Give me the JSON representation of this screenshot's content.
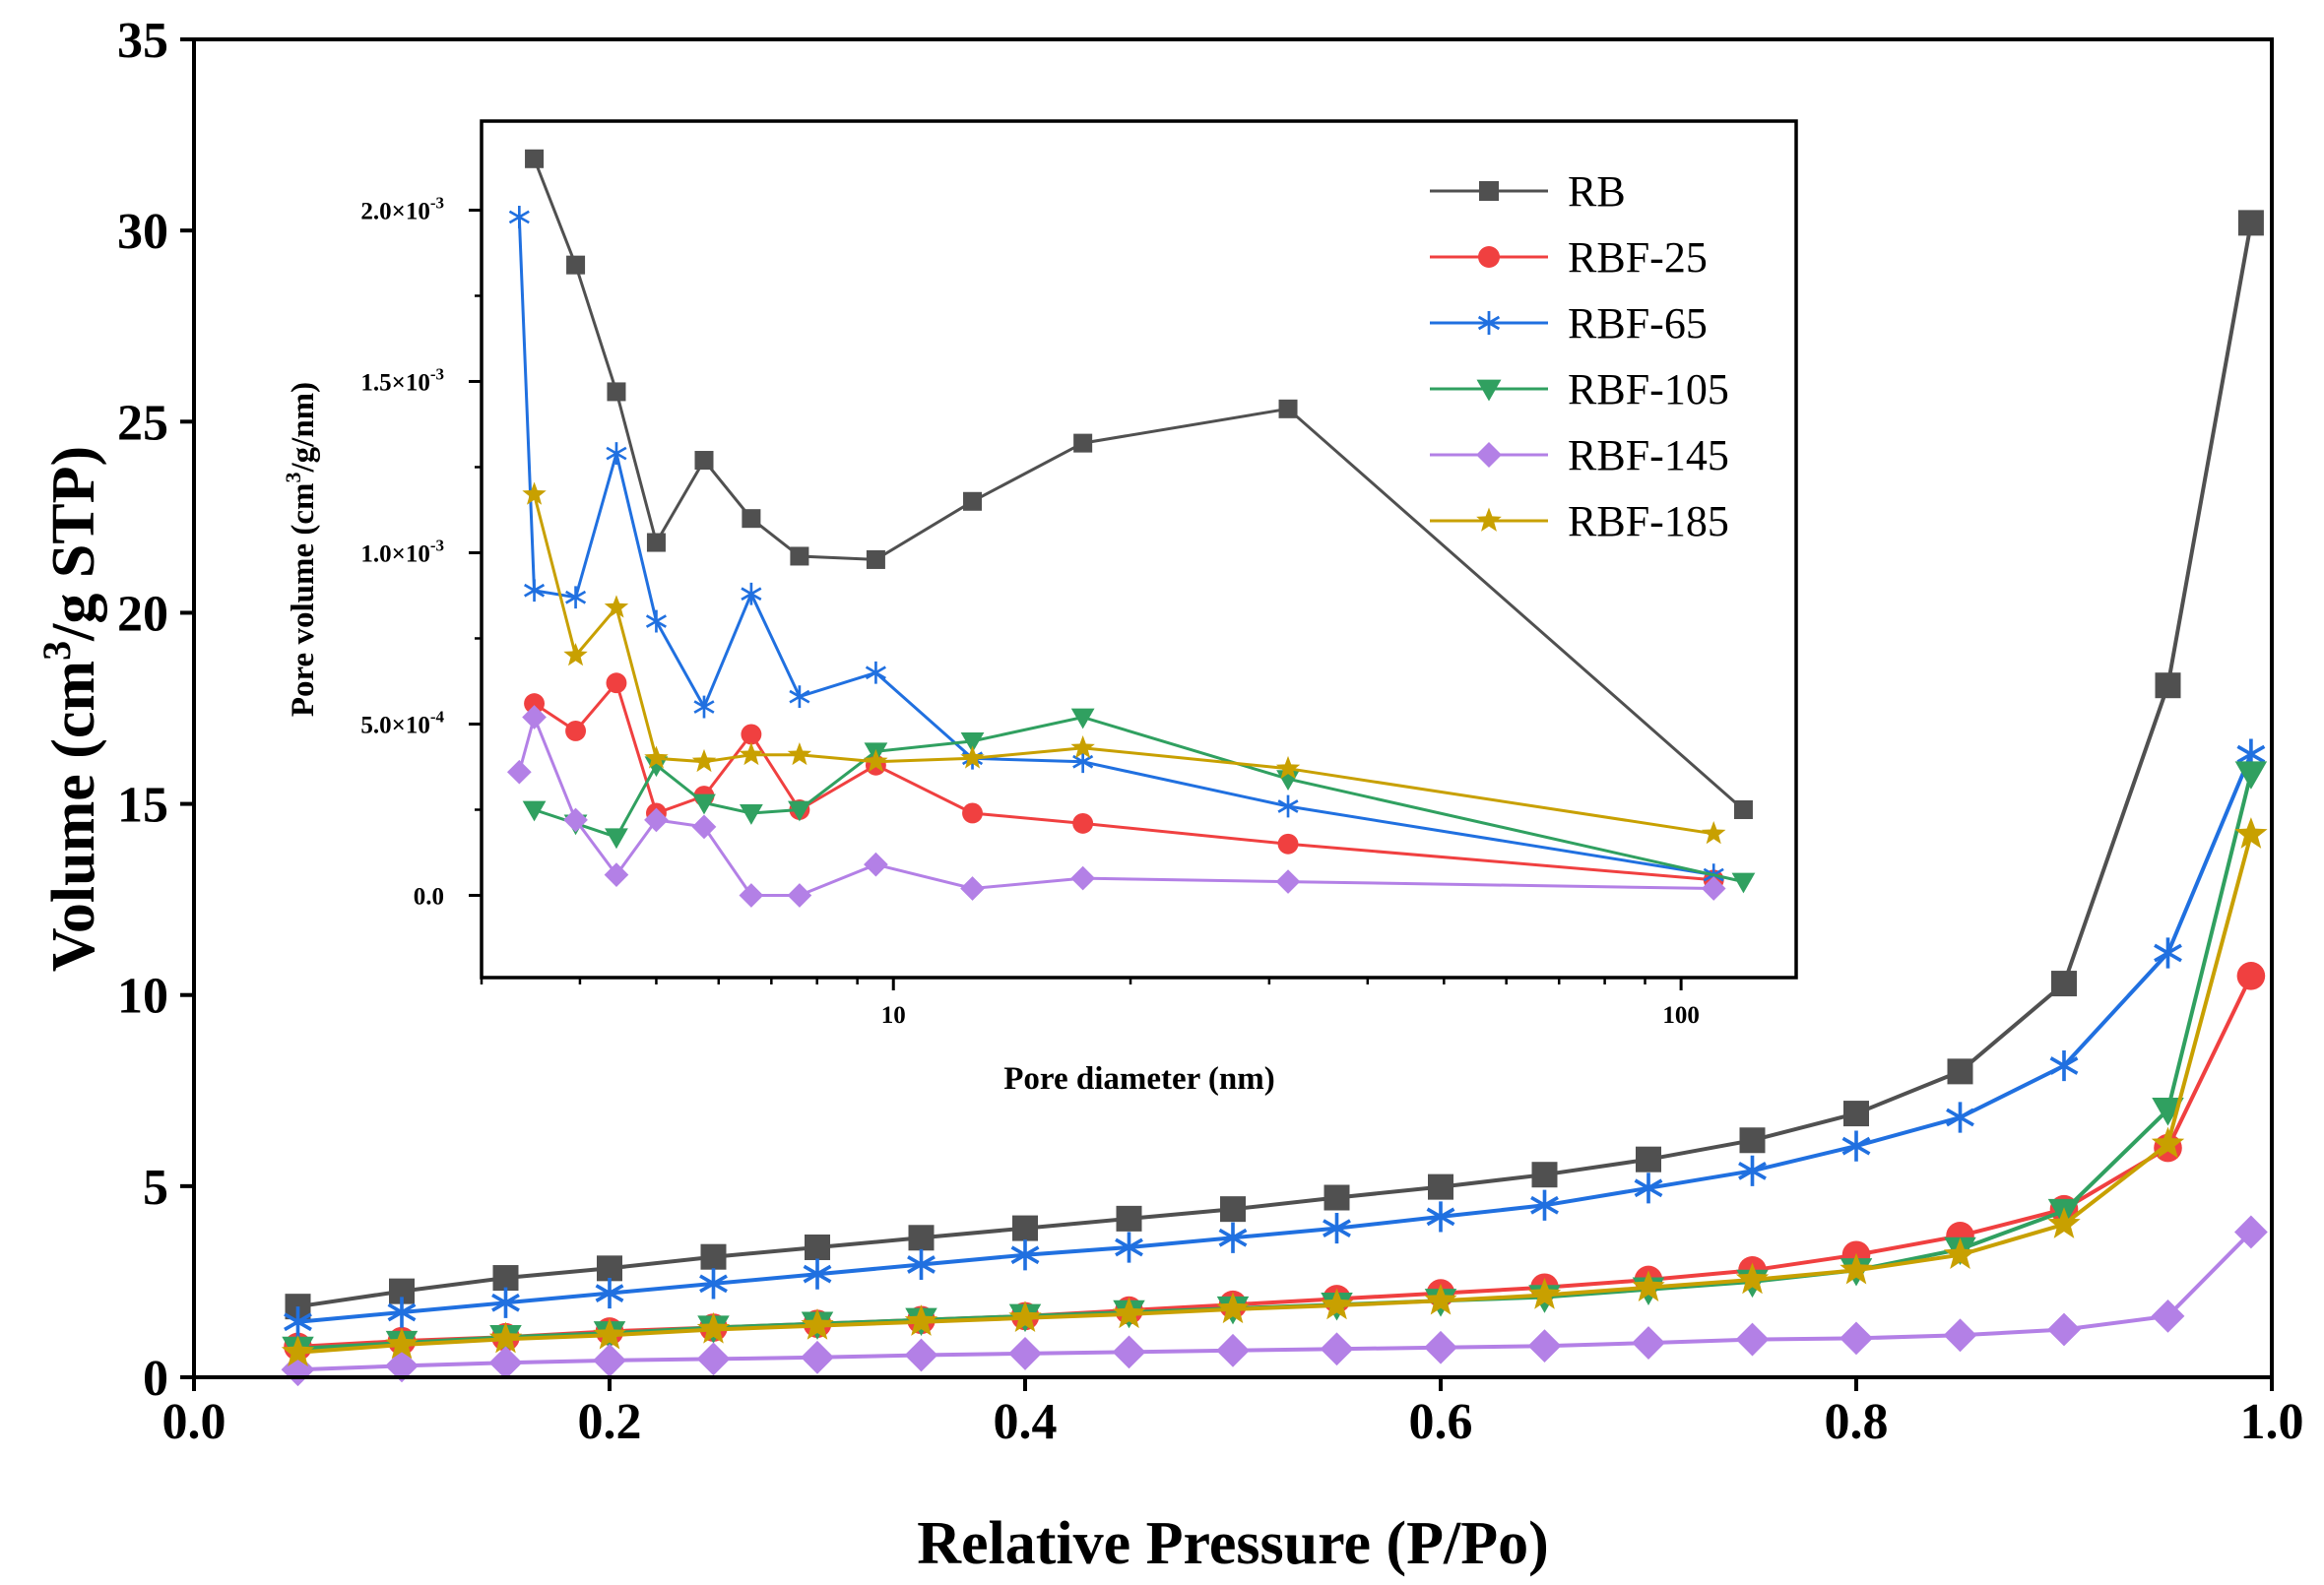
{
  "colors": {
    "RB": "#505050",
    "RBF-25": "#f04040",
    "RBF-65": "#2070e0",
    "RBF-105": "#30a060",
    "RBF-145": "#b380e6",
    "RBF-185": "#c8a000"
  },
  "chart_data": [
    {
      "type": "line",
      "title": "",
      "xlabel": "Relative Pressure (P/Po)",
      "ylabel_main": "Volume (cm",
      "ylabel_sup": "3",
      "ylabel_tail": "/g STP)",
      "xlim": [
        0.0,
        1.0
      ],
      "ylim": [
        0,
        35
      ],
      "xticks": [
        "0.0",
        "0.2",
        "0.4",
        "0.6",
        "0.8",
        "1.0"
      ],
      "yticks": [
        "0",
        "5",
        "10",
        "15",
        "20",
        "25",
        "30",
        "35"
      ],
      "x": [
        0.05,
        0.1,
        0.15,
        0.2,
        0.25,
        0.3,
        0.35,
        0.4,
        0.45,
        0.5,
        0.55,
        0.6,
        0.65,
        0.7,
        0.75,
        0.8,
        0.85,
        0.9,
        0.95,
        0.99
      ],
      "series": [
        {
          "name": "RB",
          "marker": "square",
          "values": [
            1.85,
            2.25,
            2.6,
            2.85,
            3.15,
            3.4,
            3.65,
            3.9,
            4.15,
            4.4,
            4.7,
            4.98,
            5.3,
            5.7,
            6.2,
            6.9,
            8.0,
            10.3,
            18.1,
            30.2
          ]
        },
        {
          "name": "RBF-25",
          "marker": "circle",
          "values": [
            0.8,
            0.95,
            1.05,
            1.2,
            1.3,
            1.4,
            1.5,
            1.6,
            1.75,
            1.9,
            2.05,
            2.2,
            2.35,
            2.55,
            2.8,
            3.2,
            3.7,
            4.4,
            6.0,
            10.5
          ]
        },
        {
          "name": "RBF-65",
          "marker": "asterisk",
          "values": [
            1.45,
            1.7,
            1.95,
            2.2,
            2.45,
            2.7,
            2.95,
            3.2,
            3.4,
            3.65,
            3.9,
            4.2,
            4.5,
            4.95,
            5.4,
            6.05,
            6.8,
            8.15,
            11.1,
            16.3
          ]
        },
        {
          "name": "RBF-105",
          "marker": "triangle-down",
          "values": [
            0.75,
            0.9,
            1.05,
            1.15,
            1.3,
            1.4,
            1.5,
            1.6,
            1.7,
            1.8,
            1.9,
            2.0,
            2.1,
            2.3,
            2.5,
            2.8,
            3.35,
            4.35,
            7.0,
            15.8
          ]
        },
        {
          "name": "RBF-145",
          "marker": "diamond",
          "values": [
            0.2,
            0.3,
            0.38,
            0.44,
            0.48,
            0.52,
            0.58,
            0.62,
            0.66,
            0.7,
            0.74,
            0.78,
            0.82,
            0.9,
            0.99,
            1.02,
            1.1,
            1.25,
            1.6,
            3.8
          ]
        },
        {
          "name": "RBF-185",
          "marker": "star",
          "values": [
            0.65,
            0.85,
            1.0,
            1.1,
            1.25,
            1.35,
            1.45,
            1.55,
            1.65,
            1.78,
            1.88,
            2.0,
            2.15,
            2.35,
            2.55,
            2.8,
            3.2,
            4.0,
            6.1,
            14.2
          ]
        }
      ]
    },
    {
      "type": "line",
      "title": "",
      "xlabel": "Pore diameter (nm)",
      "ylabel_main": "Pore volume (cm",
      "ylabel_sup": "3",
      "ylabel_tail": "/g/nm)",
      "xscale": "log",
      "xlim": [
        3.0,
        140
      ],
      "ylim": [
        -0.00024,
        0.00226
      ],
      "xticks": [
        {
          "value": 10,
          "label": "10"
        },
        {
          "value": 100,
          "label": "100"
        }
      ],
      "yticks": [
        {
          "value": 0.0,
          "label": "0.0"
        },
        {
          "value": 0.0005,
          "base": "5.0×10",
          "exp": "-4"
        },
        {
          "value": 0.001,
          "base": "1.0×10",
          "exp": "-3"
        },
        {
          "value": 0.0015,
          "base": "1.5×10",
          "exp": "-3"
        },
        {
          "value": 0.002,
          "base": "2.0×10",
          "exp": "-3"
        }
      ],
      "legend_position": "top-right",
      "series": [
        {
          "name": "RB",
          "marker": "square",
          "x": [
            3.5,
            3.95,
            4.45,
            5.0,
            5.75,
            6.6,
            7.6,
            9.5,
            12.6,
            17.4,
            31.7,
            120
          ],
          "values": [
            0.00215,
            0.00184,
            0.00147,
            0.00103,
            0.00127,
            0.0011,
            0.00099,
            0.00098,
            0.00115,
            0.00132,
            0.00142,
            0.00025
          ]
        },
        {
          "name": "RBF-25",
          "marker": "circle",
          "x": [
            3.5,
            3.95,
            4.45,
            5.0,
            5.75,
            6.6,
            7.6,
            9.5,
            12.6,
            17.4,
            31.7,
            110
          ],
          "values": [
            0.00056,
            0.00048,
            0.00062,
            0.00024,
            0.00029,
            0.00047,
            0.00025,
            0.00038,
            0.00024,
            0.00021,
            0.00015,
            4.5e-05
          ]
        },
        {
          "name": "RBF-65",
          "marker": "asterisk",
          "x": [
            3.35,
            3.5,
            3.95,
            4.45,
            5.0,
            5.75,
            6.6,
            7.6,
            9.5,
            12.6,
            17.4,
            31.7,
            110
          ],
          "values": [
            0.00198,
            0.00089,
            0.00087,
            0.00129,
            0.0008,
            0.00055,
            0.00088,
            0.00058,
            0.00065,
            0.0004,
            0.00039,
            0.00026,
            6e-05
          ]
        },
        {
          "name": "RBF-105",
          "marker": "triangle-down",
          "x": [
            3.5,
            3.95,
            4.45,
            5.0,
            5.75,
            6.6,
            7.6,
            9.5,
            12.6,
            17.4,
            31.7,
            120
          ],
          "values": [
            0.00025,
            0.00021,
            0.00017,
            0.00038,
            0.00027,
            0.00024,
            0.00025,
            0.00042,
            0.00045,
            0.00052,
            0.00034,
            4e-05
          ]
        },
        {
          "name": "RBF-145",
          "marker": "diamond",
          "x": [
            3.35,
            3.5,
            3.95,
            4.45,
            5.0,
            5.75,
            6.6,
            7.6,
            9.5,
            12.6,
            17.4,
            31.7,
            110
          ],
          "values": [
            0.00036,
            0.00052,
            0.00022,
            6e-05,
            0.00022,
            0.0002,
            0.0,
            0.0,
            9e-05,
            2e-05,
            5e-05,
            4e-05,
            2e-05
          ]
        },
        {
          "name": "RBF-185",
          "marker": "star",
          "x": [
            3.5,
            3.95,
            4.45,
            5.0,
            5.75,
            6.6,
            7.6,
            9.5,
            12.6,
            17.4,
            31.7,
            110
          ],
          "values": [
            0.00117,
            0.0007,
            0.00084,
            0.0004,
            0.00039,
            0.00041,
            0.00041,
            0.00039,
            0.0004,
            0.00043,
            0.00037,
            0.00018
          ]
        }
      ]
    }
  ]
}
